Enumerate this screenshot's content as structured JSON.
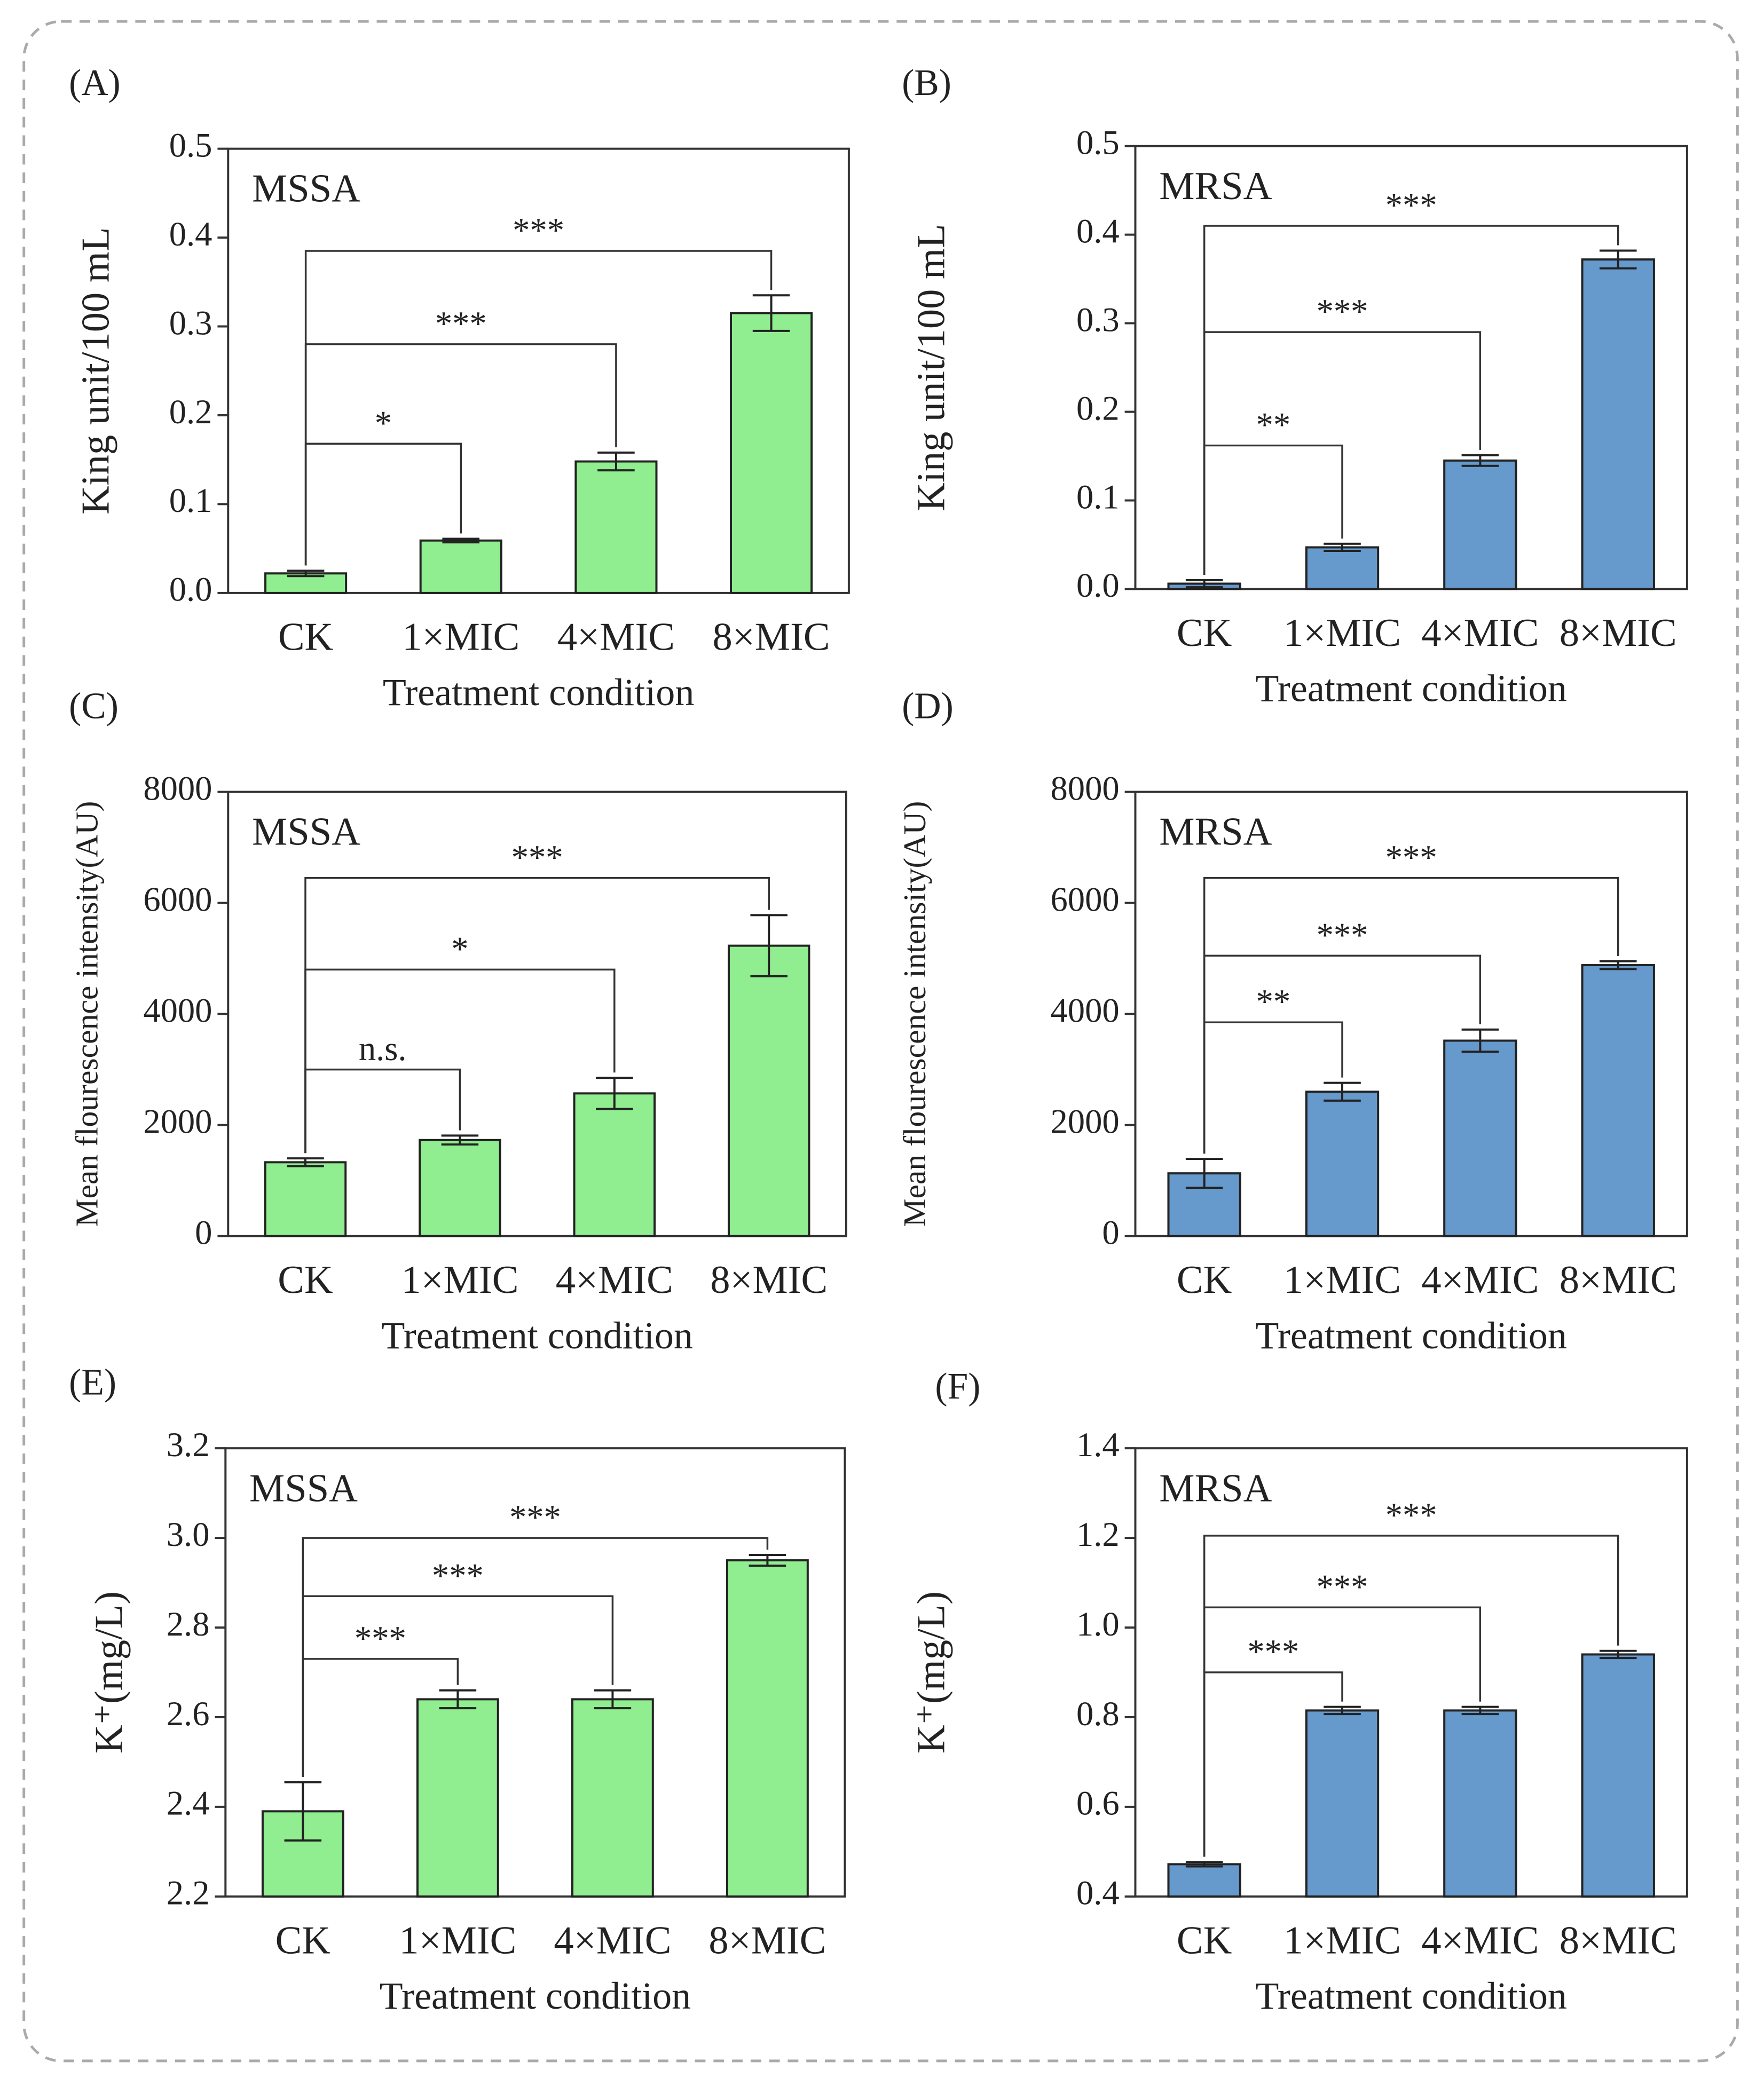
{
  "chart_data": [
    {
      "type": "bar",
      "panel": "(A)",
      "annotation": "MSSA",
      "ylabel": "King unit/100 mL",
      "xlabel": "Treatment condition",
      "categories": [
        "CK",
        "1×MIC",
        "4×MIC",
        "8×MIC"
      ],
      "values": [
        0.022,
        0.059,
        0.148,
        0.315
      ],
      "errors": [
        0.003,
        0.002,
        0.01,
        0.02
      ],
      "color": "#90ee90",
      "ylim": [
        0,
        0.5
      ],
      "yticks": [
        {
          "value": 0,
          "label": "0.0"
        },
        0.1,
        0.2,
        0.3,
        0.4,
        0.5
      ],
      "brackets": [
        {
          "from": 0,
          "to": 1,
          "y": 0.168,
          "label": "*"
        },
        {
          "from": 0,
          "to": 2,
          "y": 0.28,
          "label": "***"
        },
        {
          "from": 0,
          "to": 3,
          "y": 0.385,
          "label": "***"
        }
      ]
    },
    {
      "type": "bar",
      "panel": "(B)",
      "annotation": "MRSA",
      "ylabel": "King unit/100 mL",
      "xlabel": "Treatment condition",
      "categories": [
        "CK",
        "1×MIC",
        "4×MIC",
        "8×MIC"
      ],
      "values": [
        0.006,
        0.047,
        0.145,
        0.372
      ],
      "errors": [
        0.004,
        0.004,
        0.006,
        0.01
      ],
      "color": "#6699cc",
      "ylim": [
        0,
        0.5
      ],
      "yticks": [
        {
          "value": 0,
          "label": "0.0"
        },
        0.1,
        0.2,
        0.3,
        0.4,
        0.5
      ],
      "brackets": [
        {
          "from": 0,
          "to": 1,
          "y": 0.162,
          "label": "**"
        },
        {
          "from": 0,
          "to": 2,
          "y": 0.29,
          "label": "***"
        },
        {
          "from": 0,
          "to": 3,
          "y": 0.41,
          "label": "***"
        }
      ]
    },
    {
      "type": "bar",
      "panel": "(C)",
      "annotation": "MSSA",
      "ylabel": "Mean flourescence intensity(AU)",
      "xlabel": "Treatment condition",
      "categories": [
        "CK",
        "1×MIC",
        "4×MIC",
        "8×MIC"
      ],
      "values": [
        1330,
        1730,
        2570,
        5230
      ],
      "errors": [
        70,
        80,
        280,
        550
      ],
      "color": "#90ee90",
      "ylim": [
        0,
        8000
      ],
      "yticks": [
        0,
        2000,
        4000,
        6000,
        8000
      ],
      "brackets": [
        {
          "from": 0,
          "to": 1,
          "y": 3000,
          "label": "n.s."
        },
        {
          "from": 0,
          "to": 2,
          "y": 4800,
          "label": "*"
        },
        {
          "from": 0,
          "to": 3,
          "y": 6450,
          "label": "***"
        }
      ]
    },
    {
      "type": "bar",
      "panel": "(D)",
      "annotation": "MRSA",
      "ylabel": "Mean flourescence intensity(AU)",
      "xlabel": "Treatment condition",
      "categories": [
        "CK",
        "1×MIC",
        "4×MIC",
        "8×MIC"
      ],
      "values": [
        1130,
        2600,
        3520,
        4880
      ],
      "errors": [
        260,
        160,
        200,
        70
      ],
      "color": "#6699cc",
      "ylim": [
        0,
        8000
      ],
      "yticks": [
        0,
        2000,
        4000,
        6000,
        8000
      ],
      "brackets": [
        {
          "from": 0,
          "to": 1,
          "y": 3850,
          "label": "**"
        },
        {
          "from": 0,
          "to": 2,
          "y": 5050,
          "label": "***"
        },
        {
          "from": 0,
          "to": 3,
          "y": 6450,
          "label": "***"
        }
      ]
    },
    {
      "type": "bar",
      "panel": "(E)",
      "annotation": "MSSA",
      "ylabel": "K⁺(mg/L)",
      "xlabel": "Treatment condition",
      "categories": [
        "CK",
        "1×MIC",
        "4×MIC",
        "8×MIC"
      ],
      "values": [
        2.39,
        2.64,
        2.64,
        2.95
      ],
      "errors": [
        0.065,
        0.02,
        0.02,
        0.012
      ],
      "color": "#90ee90",
      "ylim": [
        2.2,
        3.2
      ],
      "yticks": [
        2.2,
        2.4,
        2.6,
        2.8,
        {
          "value": 3,
          "label": "3.0"
        },
        3.2
      ],
      "brackets": [
        {
          "from": 0,
          "to": 1,
          "y": 2.73,
          "label": "***"
        },
        {
          "from": 0,
          "to": 2,
          "y": 2.87,
          "label": "***"
        },
        {
          "from": 0,
          "to": 3,
          "y": 3.0,
          "label": "***"
        }
      ]
    },
    {
      "type": "bar",
      "panel": "(F)",
      "annotation": "MRSA",
      "ylabel": "K⁺(mg/L)",
      "xlabel": "Treatment condition",
      "categories": [
        "CK",
        "1×MIC",
        "4×MIC",
        "8×MIC"
      ],
      "values": [
        0.472,
        0.815,
        0.815,
        0.94
      ],
      "errors": [
        0.005,
        0.008,
        0.008,
        0.008
      ],
      "color": "#6699cc",
      "ylim": [
        0.4,
        1.4
      ],
      "yticks": [
        0.4,
        0.6,
        0.8,
        {
          "value": 1,
          "label": "1.0"
        },
        1.2,
        1.4
      ],
      "brackets": [
        {
          "from": 0,
          "to": 1,
          "y": 0.9,
          "label": "***"
        },
        {
          "from": 0,
          "to": 2,
          "y": 1.045,
          "label": "***"
        },
        {
          "from": 0,
          "to": 3,
          "y": 1.205,
          "label": "***"
        }
      ]
    }
  ]
}
